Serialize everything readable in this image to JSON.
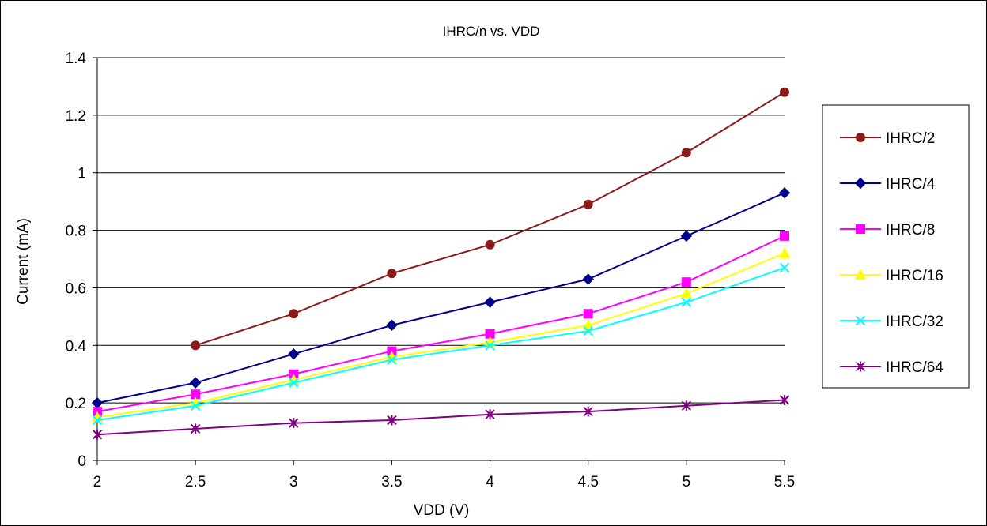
{
  "chart_data": {
    "type": "line",
    "title": "IHRC/n vs. VDD",
    "xlabel": "VDD (V)",
    "ylabel": "Current (mA)",
    "x": [
      2,
      2.5,
      3,
      3.5,
      4,
      4.5,
      5,
      5.5
    ],
    "x_tick_labels": [
      "2",
      "2.5",
      "3",
      "3.5",
      "4",
      "4.5",
      "5",
      "5.5"
    ],
    "ylim": [
      0,
      1.4
    ],
    "y_ticks": [
      0,
      0.2,
      0.4,
      0.6,
      0.8,
      1,
      1.2,
      1.4
    ],
    "y_tick_labels": [
      "0",
      "0.2",
      "0.4",
      "0.6",
      "0.8",
      "1",
      "1.2",
      "1.4"
    ],
    "grid": "horizontal",
    "legend_position": "right",
    "series": [
      {
        "name": "IHRC/2",
        "color": "#8B1A1A",
        "marker": "circle",
        "x": [
          2.5,
          3,
          3.5,
          4,
          4.5,
          5,
          5.5
        ],
        "values": [
          0.4,
          0.51,
          0.65,
          0.75,
          0.89,
          1.07,
          1.28
        ]
      },
      {
        "name": "IHRC/4",
        "color": "#00008B",
        "marker": "diamond",
        "x": [
          2,
          2.5,
          3,
          3.5,
          4,
          4.5,
          5,
          5.5
        ],
        "values": [
          0.2,
          0.27,
          0.37,
          0.47,
          0.55,
          0.63,
          0.78,
          0.93
        ]
      },
      {
        "name": "IHRC/8",
        "color": "#FF00FF",
        "marker": "square",
        "x": [
          2,
          2.5,
          3,
          3.5,
          4,
          4.5,
          5,
          5.5
        ],
        "values": [
          0.17,
          0.23,
          0.3,
          0.38,
          0.44,
          0.51,
          0.62,
          0.78
        ]
      },
      {
        "name": "IHRC/16",
        "color": "#FFFF00",
        "marker": "triangle",
        "x": [
          2,
          2.5,
          3,
          3.5,
          4,
          4.5,
          5,
          5.5
        ],
        "values": [
          0.15,
          0.2,
          0.28,
          0.36,
          0.41,
          0.47,
          0.58,
          0.72
        ]
      },
      {
        "name": "IHRC/32",
        "color": "#00FFFF",
        "marker": "x",
        "x": [
          2,
          2.5,
          3,
          3.5,
          4,
          4.5,
          5,
          5.5
        ],
        "values": [
          0.14,
          0.19,
          0.27,
          0.35,
          0.4,
          0.45,
          0.55,
          0.67
        ]
      },
      {
        "name": "IHRC/64",
        "color": "#800080",
        "marker": "star",
        "x": [
          2,
          2.5,
          3,
          3.5,
          4,
          4.5,
          5,
          5.5
        ],
        "values": [
          0.09,
          0.11,
          0.13,
          0.14,
          0.16,
          0.17,
          0.19,
          0.21
        ]
      }
    ]
  }
}
